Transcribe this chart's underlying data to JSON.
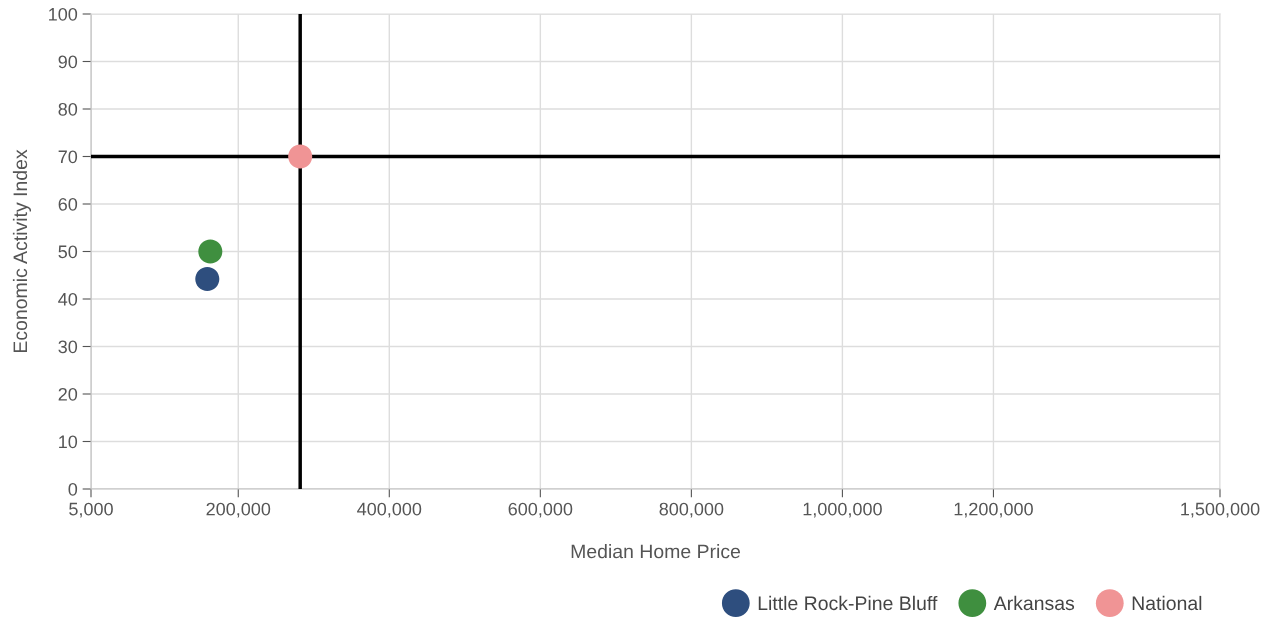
{
  "chart_data": {
    "type": "scatter",
    "xlabel": "Median Home Price",
    "ylabel": "Economic Activity Index",
    "xlim": [
      5000,
      1500000
    ],
    "xticks": [
      {
        "value": 5000,
        "label": "5,000"
      },
      {
        "value": 200000,
        "label": "200,000"
      },
      {
        "value": 400000,
        "label": "400,000"
      },
      {
        "value": 600000,
        "label": "600,000"
      },
      {
        "value": 800000,
        "label": "800,000"
      },
      {
        "value": 1000000,
        "label": "1,000,000"
      },
      {
        "value": 1200000,
        "label": "1,200,000"
      },
      {
        "value": 1500000,
        "label": "1,500,000"
      }
    ],
    "ylim": [
      0,
      100
    ],
    "yticks": [
      0,
      10,
      20,
      30,
      40,
      50,
      60,
      70,
      80,
      90,
      100
    ],
    "series": [
      {
        "name": "Little Rock-Pine Bluff",
        "color": "#2e4e7e",
        "x": [
          159000
        ],
        "values": [
          44.2
        ]
      },
      {
        "name": "Arkansas",
        "color": "#3f8f3f",
        "x": [
          163000
        ],
        "values": [
          50
        ]
      },
      {
        "name": "National",
        "color": "#f09495",
        "x": [
          282000
        ],
        "values": [
          70
        ]
      }
    ],
    "ref_lines": [
      {
        "axis": "x",
        "value": 282000,
        "color": "#000000"
      },
      {
        "axis": "y",
        "value": 70,
        "color": "#000000"
      }
    ],
    "grid": true,
    "legend": "bottom right",
    "marker": "circle"
  }
}
